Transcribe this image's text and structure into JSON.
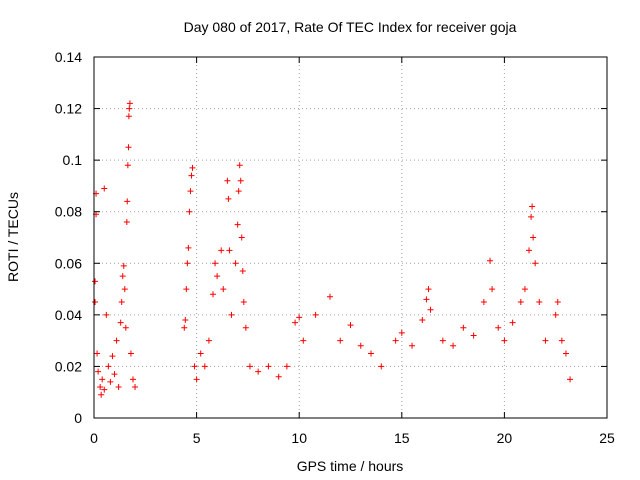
{
  "chart_data": {
    "type": "scatter",
    "title": "Day 080 of 2017, Rate Of TEC Index for receiver goja",
    "xlabel": "GPS time / hours",
    "ylabel": "ROTI / TECUs",
    "xlim": [
      0,
      25
    ],
    "ylim": [
      0,
      0.14
    ],
    "x_ticks": [
      0,
      5,
      10,
      15,
      20,
      25
    ],
    "x_tick_labels": [
      "0",
      "5",
      "10",
      "15",
      "20",
      "25"
    ],
    "y_ticks": [
      0,
      0.02,
      0.04,
      0.06,
      0.08,
      0.1,
      0.12,
      0.14
    ],
    "y_tick_labels": [
      "0",
      "0.02",
      "0.04",
      "0.06",
      "0.08",
      "0.1",
      "0.12",
      "0.14"
    ],
    "grid": true,
    "marker": "+",
    "color": "#ff0000",
    "series": [
      {
        "points": [
          [
            0.1,
            0.087
          ],
          [
            0.1,
            0.079
          ],
          [
            0.05,
            0.053
          ],
          [
            0.05,
            0.045
          ],
          [
            0.5,
            0.089
          ],
          [
            0.6,
            0.04
          ],
          [
            0.15,
            0.025
          ],
          [
            0.2,
            0.018
          ],
          [
            0.3,
            0.012
          ],
          [
            0.35,
            0.009
          ],
          [
            0.4,
            0.015
          ],
          [
            0.5,
            0.011
          ],
          [
            0.7,
            0.02
          ],
          [
            0.8,
            0.014
          ],
          [
            0.9,
            0.024
          ],
          [
            1.0,
            0.017
          ],
          [
            1.1,
            0.03
          ],
          [
            1.2,
            0.012
          ],
          [
            1.3,
            0.037
          ],
          [
            1.35,
            0.045
          ],
          [
            1.4,
            0.055
          ],
          [
            1.45,
            0.059
          ],
          [
            1.5,
            0.05
          ],
          [
            1.55,
            0.035
          ],
          [
            1.6,
            0.076
          ],
          [
            1.62,
            0.084
          ],
          [
            1.65,
            0.098
          ],
          [
            1.68,
            0.105
          ],
          [
            1.7,
            0.117
          ],
          [
            1.72,
            0.12
          ],
          [
            1.75,
            0.122
          ],
          [
            1.8,
            0.025
          ],
          [
            1.9,
            0.015
          ],
          [
            2.0,
            0.012
          ],
          [
            4.4,
            0.035
          ],
          [
            4.45,
            0.038
          ],
          [
            4.5,
            0.05
          ],
          [
            4.55,
            0.06
          ],
          [
            4.6,
            0.066
          ],
          [
            4.65,
            0.08
          ],
          [
            4.7,
            0.088
          ],
          [
            4.75,
            0.094
          ],
          [
            4.8,
            0.097
          ],
          [
            4.9,
            0.02
          ],
          [
            5.0,
            0.015
          ],
          [
            5.2,
            0.025
          ],
          [
            5.4,
            0.02
          ],
          [
            5.6,
            0.03
          ],
          [
            5.8,
            0.048
          ],
          [
            5.9,
            0.06
          ],
          [
            6.0,
            0.055
          ],
          [
            6.2,
            0.065
          ],
          [
            6.3,
            0.05
          ],
          [
            6.5,
            0.092
          ],
          [
            6.55,
            0.085
          ],
          [
            6.6,
            0.065
          ],
          [
            6.7,
            0.04
          ],
          [
            6.9,
            0.06
          ],
          [
            7.0,
            0.075
          ],
          [
            7.05,
            0.088
          ],
          [
            7.1,
            0.098
          ],
          [
            7.15,
            0.092
          ],
          [
            7.2,
            0.07
          ],
          [
            7.25,
            0.057
          ],
          [
            7.3,
            0.045
          ],
          [
            7.4,
            0.035
          ],
          [
            7.6,
            0.02
          ],
          [
            8.0,
            0.018
          ],
          [
            8.5,
            0.02
          ],
          [
            9.0,
            0.016
          ],
          [
            9.4,
            0.02
          ],
          [
            9.8,
            0.037
          ],
          [
            10.0,
            0.039
          ],
          [
            10.2,
            0.03
          ],
          [
            10.8,
            0.04
          ],
          [
            11.5,
            0.047
          ],
          [
            12.0,
            0.03
          ],
          [
            12.5,
            0.036
          ],
          [
            13.0,
            0.028
          ],
          [
            13.5,
            0.025
          ],
          [
            14.0,
            0.02
          ],
          [
            14.7,
            0.03
          ],
          [
            15.0,
            0.033
          ],
          [
            15.5,
            0.028
          ],
          [
            16.0,
            0.038
          ],
          [
            16.2,
            0.046
          ],
          [
            16.3,
            0.05
          ],
          [
            16.4,
            0.042
          ],
          [
            17.0,
            0.03
          ],
          [
            17.5,
            0.028
          ],
          [
            18.0,
            0.035
          ],
          [
            18.5,
            0.032
          ],
          [
            19.0,
            0.045
          ],
          [
            19.3,
            0.061
          ],
          [
            19.4,
            0.05
          ],
          [
            19.7,
            0.035
          ],
          [
            20.0,
            0.03
          ],
          [
            20.4,
            0.037
          ],
          [
            20.8,
            0.045
          ],
          [
            21.0,
            0.05
          ],
          [
            21.2,
            0.065
          ],
          [
            21.3,
            0.078
          ],
          [
            21.35,
            0.082
          ],
          [
            21.4,
            0.07
          ],
          [
            21.5,
            0.06
          ],
          [
            21.7,
            0.045
          ],
          [
            22.0,
            0.03
          ],
          [
            22.5,
            0.04
          ],
          [
            22.6,
            0.045
          ],
          [
            22.8,
            0.03
          ],
          [
            23.0,
            0.025
          ],
          [
            23.2,
            0.015
          ]
        ]
      }
    ]
  }
}
